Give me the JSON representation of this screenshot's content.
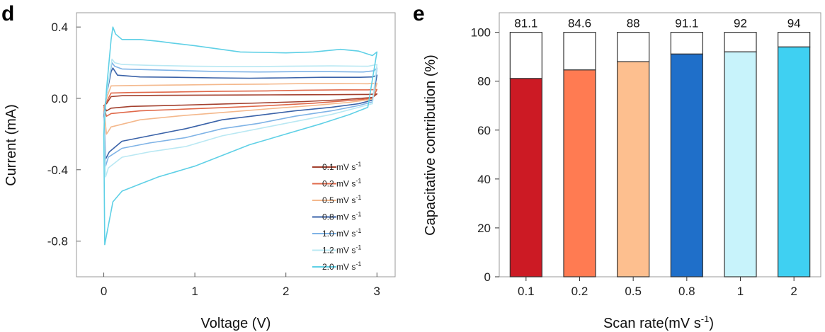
{
  "chart_data": [
    {
      "panel": "d",
      "type": "line",
      "xlabel": "Voltage (V)",
      "ylabel": "Current (mA)",
      "xlim": [
        -0.3,
        3.2
      ],
      "ylim": [
        -1.0,
        0.48
      ],
      "xticks": [
        0,
        1,
        2,
        3
      ],
      "yticks": [
        0.4,
        0.0,
        -0.4,
        -0.8
      ],
      "xtick_labels": [
        "0",
        "1",
        "2",
        "3"
      ],
      "ytick_labels": [
        "0.4",
        "0.0",
        "-0.4",
        "-0.8"
      ],
      "grid": false,
      "legend_position": "lower-right",
      "series": [
        {
          "name": "0.1 mV s-1",
          "name_main": "0.1 mV s",
          "name_sup": "-1",
          "color": "#a3402e",
          "upper": [
            [
              0.0,
              -0.04
            ],
            [
              0.03,
              -0.03
            ],
            [
              0.08,
              0.01
            ],
            [
              0.2,
              0.015
            ],
            [
              0.6,
              0.017
            ],
            [
              1.0,
              0.018
            ],
            [
              1.5,
              0.019
            ],
            [
              2.0,
              0.02
            ],
            [
              2.5,
              0.021
            ],
            [
              2.9,
              0.022
            ],
            [
              3.0,
              0.025
            ]
          ],
          "lower": [
            [
              0.0,
              -0.04
            ],
            [
              0.03,
              -0.07
            ],
            [
              0.08,
              -0.055
            ],
            [
              0.3,
              -0.045
            ],
            [
              0.7,
              -0.04
            ],
            [
              1.2,
              -0.033
            ],
            [
              1.7,
              -0.026
            ],
            [
              2.2,
              -0.018
            ],
            [
              2.6,
              -0.008
            ],
            [
              2.95,
              0.005
            ],
            [
              3.0,
              0.025
            ]
          ]
        },
        {
          "name": "0.2 mV s-1",
          "name_main": "0.2 mV s",
          "name_sup": "-1",
          "color": "#e0694a",
          "upper": [
            [
              0.0,
              -0.05
            ],
            [
              0.03,
              -0.02
            ],
            [
              0.08,
              0.03
            ],
            [
              0.3,
              0.033
            ],
            [
              0.8,
              0.036
            ],
            [
              1.3,
              0.04
            ],
            [
              1.8,
              0.042
            ],
            [
              2.2,
              0.046
            ],
            [
              2.6,
              0.048
            ],
            [
              2.9,
              0.048
            ],
            [
              3.0,
              0.05
            ]
          ],
          "lower": [
            [
              0.0,
              -0.05
            ],
            [
              0.03,
              -0.1
            ],
            [
              0.08,
              -0.085
            ],
            [
              0.4,
              -0.07
            ],
            [
              0.9,
              -0.06
            ],
            [
              1.4,
              -0.05
            ],
            [
              1.9,
              -0.038
            ],
            [
              2.3,
              -0.027
            ],
            [
              2.7,
              -0.012
            ],
            [
              2.95,
              0.0
            ],
            [
              3.0,
              0.05
            ]
          ]
        },
        {
          "name": "0.5 mV s-1",
          "name_main": "0.5 mV s",
          "name_sup": "-1",
          "color": "#f4b88c",
          "upper": [
            [
              0.0,
              -0.06
            ],
            [
              0.03,
              0.0
            ],
            [
              0.08,
              0.07
            ],
            [
              0.3,
              0.072
            ],
            [
              0.8,
              0.075
            ],
            [
              1.3,
              0.078
            ],
            [
              1.8,
              0.08
            ],
            [
              2.2,
              0.083
            ],
            [
              2.6,
              0.083
            ],
            [
              2.9,
              0.082
            ],
            [
              3.0,
              0.085
            ]
          ],
          "lower": [
            [
              0.0,
              -0.06
            ],
            [
              0.03,
              -0.2
            ],
            [
              0.08,
              -0.16
            ],
            [
              0.4,
              -0.12
            ],
            [
              0.9,
              -0.095
            ],
            [
              1.4,
              -0.075
            ],
            [
              1.9,
              -0.055
            ],
            [
              2.3,
              -0.04
            ],
            [
              2.7,
              -0.022
            ],
            [
              2.95,
              -0.005
            ],
            [
              3.0,
              0.085
            ]
          ]
        },
        {
          "name": "0.8 mV s-1",
          "name_main": "0.8 mV s",
          "name_sup": "-1",
          "color": "#3a62a8",
          "upper": [
            [
              0.0,
              -0.1
            ],
            [
              0.03,
              0.02
            ],
            [
              0.08,
              0.15
            ],
            [
              0.1,
              0.17
            ],
            [
              0.15,
              0.13
            ],
            [
              0.4,
              0.12
            ],
            [
              0.8,
              0.118
            ],
            [
              1.2,
              0.115
            ],
            [
              1.6,
              0.113
            ],
            [
              2.0,
              0.115
            ],
            [
              2.4,
              0.118
            ],
            [
              2.8,
              0.118
            ],
            [
              2.95,
              0.12
            ],
            [
              3.0,
              0.13
            ]
          ],
          "lower": [
            [
              0.0,
              -0.1
            ],
            [
              0.02,
              -0.34
            ],
            [
              0.06,
              -0.3
            ],
            [
              0.2,
              -0.24
            ],
            [
              0.5,
              -0.21
            ],
            [
              0.9,
              -0.17
            ],
            [
              1.3,
              -0.12
            ],
            [
              1.7,
              -0.095
            ],
            [
              2.1,
              -0.07
            ],
            [
              2.5,
              -0.05
            ],
            [
              2.8,
              -0.03
            ],
            [
              2.95,
              -0.01
            ],
            [
              3.0,
              0.13
            ]
          ]
        },
        {
          "name": "1.0 mV s-1",
          "name_main": "1.0 mV s",
          "name_sup": "-1",
          "color": "#7fb3e6",
          "upper": [
            [
              0.0,
              -0.12
            ],
            [
              0.03,
              0.03
            ],
            [
              0.09,
              0.2
            ],
            [
              0.12,
              0.18
            ],
            [
              0.2,
              0.165
            ],
            [
              0.5,
              0.16
            ],
            [
              0.9,
              0.155
            ],
            [
              1.3,
              0.15
            ],
            [
              1.7,
              0.148
            ],
            [
              2.1,
              0.15
            ],
            [
              2.5,
              0.15
            ],
            [
              2.85,
              0.148
            ],
            [
              2.97,
              0.155
            ],
            [
              3.0,
              0.17
            ]
          ],
          "lower": [
            [
              0.0,
              -0.12
            ],
            [
              0.02,
              -0.38
            ],
            [
              0.05,
              -0.33
            ],
            [
              0.2,
              -0.28
            ],
            [
              0.5,
              -0.25
            ],
            [
              0.9,
              -0.22
            ],
            [
              1.3,
              -0.17
            ],
            [
              1.7,
              -0.14
            ],
            [
              2.1,
              -0.1
            ],
            [
              2.5,
              -0.07
            ],
            [
              2.8,
              -0.04
            ],
            [
              2.95,
              -0.02
            ],
            [
              3.0,
              0.17
            ]
          ]
        },
        {
          "name": "1.2 mV s-1",
          "name_main": "1.2 mV s",
          "name_sup": "-1",
          "color": "#b9e8f3",
          "upper": [
            [
              0.0,
              -0.14
            ],
            [
              0.03,
              0.02
            ],
            [
              0.09,
              0.22
            ],
            [
              0.12,
              0.2
            ],
            [
              0.2,
              0.19
            ],
            [
              0.5,
              0.185
            ],
            [
              1.0,
              0.18
            ],
            [
              1.5,
              0.178
            ],
            [
              2.0,
              0.18
            ],
            [
              2.5,
              0.182
            ],
            [
              2.9,
              0.18
            ],
            [
              3.0,
              0.19
            ]
          ],
          "lower": [
            [
              0.0,
              -0.14
            ],
            [
              0.02,
              -0.44
            ],
            [
              0.05,
              -0.39
            ],
            [
              0.2,
              -0.33
            ],
            [
              0.5,
              -0.3
            ],
            [
              0.9,
              -0.27
            ],
            [
              1.3,
              -0.21
            ],
            [
              1.7,
              -0.17
            ],
            [
              2.1,
              -0.13
            ],
            [
              2.5,
              -0.09
            ],
            [
              2.8,
              -0.05
            ],
            [
              2.95,
              -0.03
            ],
            [
              3.0,
              0.19
            ]
          ]
        },
        {
          "name": "2.0 mV s-1",
          "name_main": "2.0 mV s",
          "name_sup": "-1",
          "color": "#5fd0e6",
          "upper": [
            [
              0.0,
              -0.2
            ],
            [
              0.03,
              0.05
            ],
            [
              0.08,
              0.33
            ],
            [
              0.1,
              0.4
            ],
            [
              0.13,
              0.36
            ],
            [
              0.2,
              0.33
            ],
            [
              0.4,
              0.33
            ],
            [
              0.6,
              0.32
            ],
            [
              0.75,
              0.31
            ],
            [
              1.0,
              0.295
            ],
            [
              1.5,
              0.26
            ],
            [
              2.0,
              0.255
            ],
            [
              2.3,
              0.26
            ],
            [
              2.6,
              0.275
            ],
            [
              2.8,
              0.265
            ],
            [
              2.95,
              0.24
            ],
            [
              3.0,
              0.26
            ]
          ],
          "lower": [
            [
              0.0,
              -0.2
            ],
            [
              0.01,
              -0.82
            ],
            [
              0.04,
              -0.74
            ],
            [
              0.1,
              -0.58
            ],
            [
              0.2,
              -0.52
            ],
            [
              0.4,
              -0.48
            ],
            [
              0.6,
              -0.44
            ],
            [
              0.8,
              -0.41
            ],
            [
              1.0,
              -0.38
            ],
            [
              1.3,
              -0.32
            ],
            [
              1.6,
              -0.26
            ],
            [
              2.0,
              -0.2
            ],
            [
              2.4,
              -0.14
            ],
            [
              2.7,
              -0.09
            ],
            [
              2.9,
              -0.05
            ],
            [
              3.0,
              0.26
            ]
          ]
        }
      ]
    },
    {
      "panel": "e",
      "type": "bar",
      "xlabel": "Scan rate(mV s-1)",
      "xlabel_main": "Scan rate(mV s",
      "xlabel_sup": "-1",
      "xlabel_close": ")",
      "ylabel": "Capacitative contribution (%)",
      "ylim": [
        0,
        108
      ],
      "yticks": [
        0,
        20,
        40,
        60,
        80,
        100
      ],
      "ytick_labels": [
        "0",
        "20",
        "40",
        "60",
        "80",
        "100"
      ],
      "grid": false,
      "categories": [
        "0.1",
        "0.2",
        "0.5",
        "0.8",
        "1",
        "2"
      ],
      "values": [
        81.1,
        84.6,
        88,
        91.1,
        92,
        94
      ],
      "value_labels": [
        "81.1",
        "84.6",
        "88",
        "91.1",
        "92",
        "94"
      ],
      "total": 100,
      "colors": [
        "#cc1a24",
        "#ff7b52",
        "#fdbf8f",
        "#1f6fc9",
        "#c8f3fb",
        "#3fd0f2"
      ]
    }
  ],
  "panel_labels": {
    "d": "d",
    "e": "e"
  }
}
